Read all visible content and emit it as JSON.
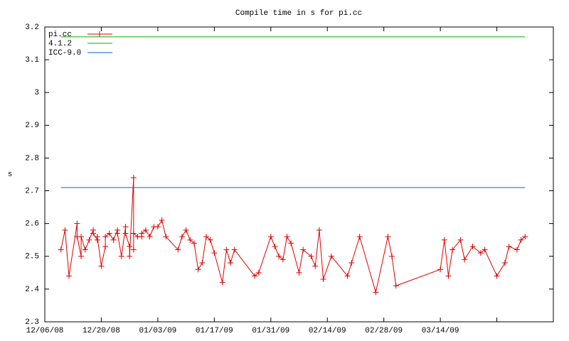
{
  "chart_data": {
    "type": "line",
    "title": "Compile time in s for pi.cc",
    "y_label": "s",
    "ylim": [
      2.3,
      3.2
    ],
    "yticks": [
      2.3,
      2.4,
      2.5,
      2.6,
      2.7,
      2.8,
      2.9,
      3,
      3.1,
      3.2
    ],
    "xlim": [
      "2008-12-06",
      "2009-04-11"
    ],
    "xticks": [
      {
        "value": "2008-12-06",
        "label": "12/06/08"
      },
      {
        "value": "2008-12-20",
        "label": "12/20/08"
      },
      {
        "value": "2009-01-03",
        "label": "01/03/09"
      },
      {
        "value": "2009-01-17",
        "label": "01/17/09"
      },
      {
        "value": "2009-01-31",
        "label": "01/31/09"
      },
      {
        "value": "2009-02-14",
        "label": "02/14/09"
      },
      {
        "value": "2009-02-28",
        "label": "02/28/09"
      },
      {
        "value": "2009-03-14",
        "label": "03/14/09"
      },
      {
        "value": "2009-03-28",
        "label": null
      }
    ],
    "legend": "top-left",
    "series": [
      {
        "name": "pi.cc",
        "color": "#e00000",
        "marker": "plus",
        "x": [
          "2008-12-10",
          "2008-12-11",
          "2008-12-12",
          "2008-12-14",
          "2008-12-14",
          "2008-12-15",
          "2008-12-15",
          "2008-12-16",
          "2008-12-17",
          "2008-12-18",
          "2008-12-18",
          "2008-12-19",
          "2008-12-19",
          "2008-12-20",
          "2008-12-21",
          "2008-12-21",
          "2008-12-22",
          "2008-12-23",
          "2008-12-24",
          "2008-12-24",
          "2008-12-25",
          "2008-12-26",
          "2008-12-26",
          "2008-12-27",
          "2008-12-27",
          "2008-12-28",
          "2008-12-28",
          "2008-12-28",
          "2008-12-29",
          "2008-12-30",
          "2008-12-30",
          "2008-12-31",
          "2009-01-01",
          "2009-01-02",
          "2009-01-03",
          "2009-01-04",
          "2009-01-05",
          "2009-01-08",
          "2009-01-09",
          "2009-01-10",
          "2009-01-11",
          "2009-01-12",
          "2009-01-13",
          "2009-01-14",
          "2009-01-15",
          "2009-01-16",
          "2009-01-17",
          "2009-01-19",
          "2009-01-20",
          "2009-01-21",
          "2009-01-22",
          "2009-01-27",
          "2009-01-28",
          "2009-01-31",
          "2009-02-01",
          "2009-02-02",
          "2009-02-03",
          "2009-02-04",
          "2009-02-05",
          "2009-02-07",
          "2009-02-08",
          "2009-02-10",
          "2009-02-11",
          "2009-02-12",
          "2009-02-13",
          "2009-02-15",
          "2009-02-19",
          "2009-02-20",
          "2009-02-22",
          "2009-02-26",
          "2009-03-01",
          "2009-03-02",
          "2009-03-03",
          "2009-03-14",
          "2009-03-15",
          "2009-03-16",
          "2009-03-17",
          "2009-03-19",
          "2009-03-20",
          "2009-03-22",
          "2009-03-24",
          "2009-03-25",
          "2009-03-28",
          "2009-03-30",
          "2009-03-31",
          "2009-04-02",
          "2009-04-03",
          "2009-04-04"
        ],
        "values": [
          2.52,
          2.58,
          2.44,
          2.6,
          2.56,
          2.5,
          2.56,
          2.52,
          2.55,
          2.58,
          2.57,
          2.55,
          2.56,
          2.47,
          2.53,
          2.56,
          2.57,
          2.55,
          2.58,
          2.57,
          2.5,
          2.59,
          2.57,
          2.53,
          2.5,
          2.74,
          2.52,
          2.57,
          2.56,
          2.56,
          2.57,
          2.58,
          2.56,
          2.59,
          2.59,
          2.61,
          2.56,
          2.52,
          2.56,
          2.58,
          2.55,
          2.54,
          2.46,
          2.48,
          2.56,
          2.55,
          2.51,
          2.42,
          2.52,
          2.48,
          2.52,
          2.44,
          2.45,
          2.56,
          2.53,
          2.5,
          2.49,
          2.56,
          2.54,
          2.45,
          2.52,
          2.5,
          2.47,
          2.58,
          2.43,
          2.5,
          2.44,
          2.48,
          2.56,
          2.39,
          2.56,
          2.5,
          2.41,
          2.46,
          2.55,
          2.44,
          2.52,
          2.55,
          2.49,
          2.53,
          2.51,
          2.52,
          2.44,
          2.48,
          2.53,
          2.52,
          2.55,
          2.56
        ]
      },
      {
        "name": "4.1.2",
        "color": "#00b000",
        "x": [
          "2008-12-10",
          "2009-04-04"
        ],
        "values": [
          3.17,
          3.17
        ]
      },
      {
        "name": "ICC-9.0",
        "color": "#0060d0",
        "x": [
          "2008-12-10",
          "2009-04-04"
        ],
        "values": [
          2.71,
          2.71
        ]
      }
    ]
  }
}
